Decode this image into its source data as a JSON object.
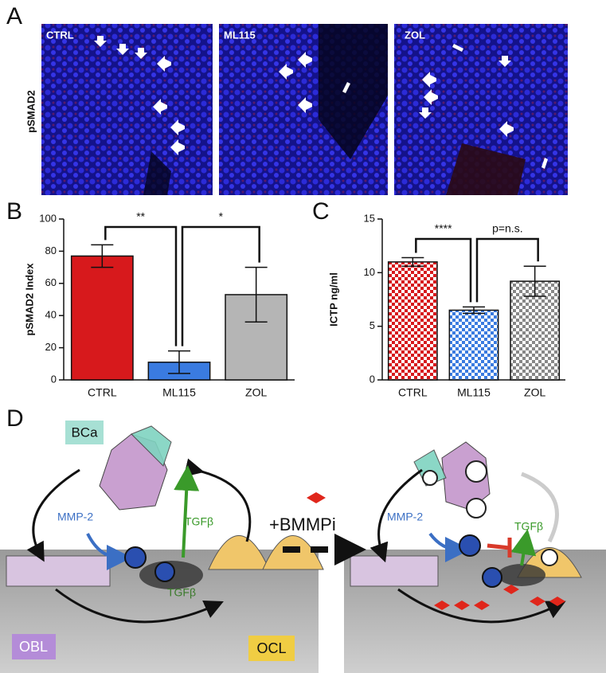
{
  "panel_a": {
    "label": "A",
    "ylabel": "pSMAD2",
    "images": [
      "CTRL",
      "ML115",
      "ZOL"
    ]
  },
  "chart_data": [
    {
      "type": "bar",
      "panel_label": "B",
      "ylabel": "pSMAD2 Index",
      "categories": [
        "CTRL",
        "ML115",
        "ZOL"
      ],
      "values": [
        77,
        11,
        53
      ],
      "errors": [
        7,
        7,
        17
      ],
      "colors": [
        "#d7191c",
        "#3a7be0",
        "#b5b5b5"
      ],
      "fill": "solid",
      "ylim": [
        0,
        100
      ],
      "yticks": [
        0,
        20,
        40,
        60,
        80,
        100
      ],
      "annotations": [
        "**",
        "*"
      ]
    },
    {
      "type": "bar",
      "panel_label": "C",
      "ylabel": "ICTP ng/ml",
      "categories": [
        "CTRL",
        "ML115",
        "ZOL"
      ],
      "values": [
        11.0,
        6.5,
        9.2
      ],
      "errors": [
        0.4,
        0.3,
        1.4
      ],
      "colors": [
        "#d7191c",
        "#3a7be0",
        "#888888"
      ],
      "fill": "checker",
      "ylim": [
        0,
        15
      ],
      "yticks": [
        0,
        5,
        10,
        15
      ],
      "annotations": [
        "****",
        "p=n.s."
      ]
    }
  ],
  "panel_d": {
    "label": "D",
    "bca": "BCa",
    "obl": "OBL",
    "ocl": "OCL",
    "left": {
      "mmp": "MMP-2",
      "tgf_top": "TGFβ",
      "tgf_bottom": "TGFβ"
    },
    "treatment": "+BMMPi",
    "right": {
      "mmp": "MMP-2",
      "tgf": "TGFβ"
    }
  }
}
